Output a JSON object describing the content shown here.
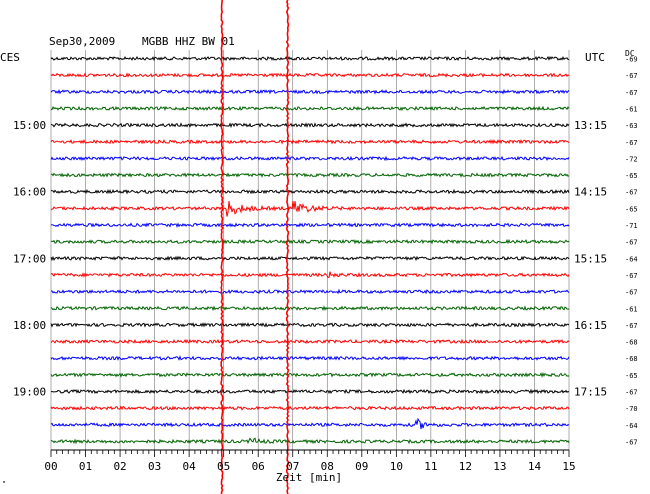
{
  "header": {
    "date": "Sep30,2009",
    "station": "MGBB HHZ BW 01",
    "left_label": "CES",
    "right_label": "UTC",
    "dc_label": "DC"
  },
  "footer": {
    "xlabel": "Zeit [min]",
    "corner_mark": "\""
  },
  "chart_data": {
    "type": "line",
    "title": "Sep30,2009  MGBB HHZ BW 01",
    "xlabel": "Zeit [min]",
    "xlim": [
      0,
      15
    ],
    "x_ticks": [
      "00",
      "01",
      "02",
      "03",
      "04",
      "05",
      "06",
      "07",
      "08",
      "09",
      "10",
      "11",
      "12",
      "13",
      "14",
      "15"
    ],
    "grid": true,
    "trace_colors": [
      "#000000",
      "#ff0000",
      "#0000ff",
      "#006400"
    ],
    "left_time_labels": [
      {
        "trace": 4,
        "label": "15:00"
      },
      {
        "trace": 8,
        "label": "16:00"
      },
      {
        "trace": 12,
        "label": "17:00"
      },
      {
        "trace": 16,
        "label": "18:00"
      },
      {
        "trace": 20,
        "label": "19:00"
      }
    ],
    "right_time_labels": [
      {
        "trace": 4,
        "label": "13:15"
      },
      {
        "trace": 8,
        "label": "14:15"
      },
      {
        "trace": 12,
        "label": "15:15"
      },
      {
        "trace": 16,
        "label": "16:15"
      },
      {
        "trace": 20,
        "label": "17:15"
      }
    ],
    "dc_offsets": [
      "-69",
      "-67",
      "-67",
      "-61",
      "-63",
      "-67",
      "-72",
      "-65",
      "-67",
      "-65",
      "-71",
      "-67",
      "-64",
      "-67",
      "-67",
      "-61",
      "-67",
      "-68",
      "-68",
      "-65",
      "-67",
      "-70",
      "-64",
      "-67"
    ],
    "events": [
      {
        "trace": 9,
        "minute": 5.1,
        "amplitude": "strong"
      },
      {
        "trace": 9,
        "minute": 7.0,
        "amplitude": "strong"
      },
      {
        "trace": 13,
        "minute": 8.0,
        "amplitude": "small"
      },
      {
        "trace": 22,
        "minute": 10.6,
        "amplitude": "medium"
      },
      {
        "trace": 23,
        "minute": 5.8,
        "amplitude": "small"
      }
    ],
    "spikes": [
      {
        "minute": 4.95,
        "color": "#ff0000"
      },
      {
        "minute": 6.85,
        "color": "#ff0000"
      }
    ]
  }
}
